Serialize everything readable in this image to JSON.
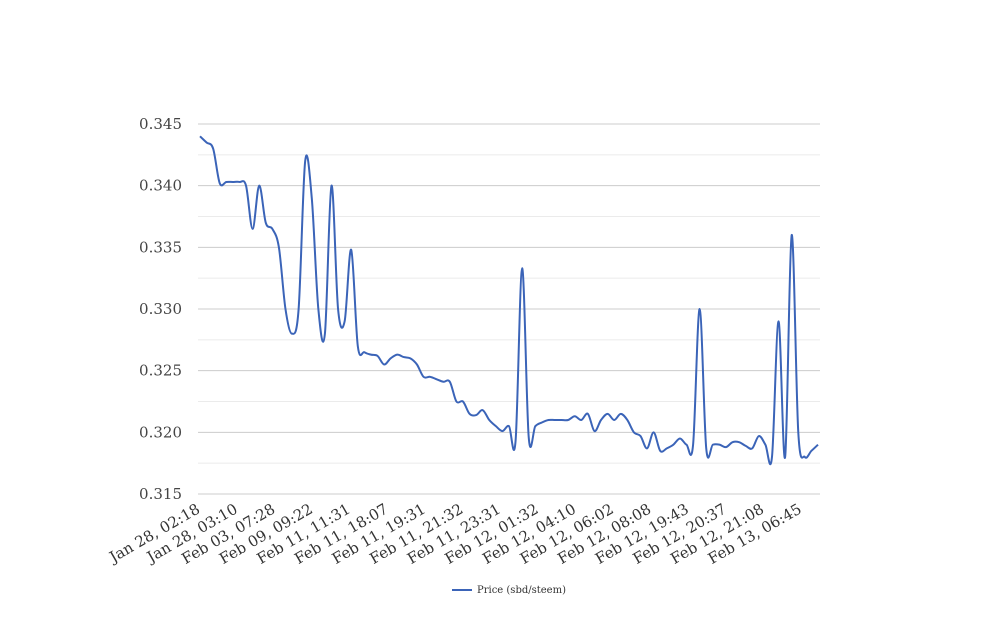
{
  "chart_data": {
    "type": "line",
    "title": "",
    "xlabel": "",
    "ylabel": "",
    "ylim": [
      0.315,
      0.345
    ],
    "yticks": [
      "0.315",
      "0.320",
      "0.325",
      "0.330",
      "0.335",
      "0.340",
      "0.345"
    ],
    "grid": true,
    "legend_position": "bottom-center",
    "x_tick_labels": [
      "Jan 28, 02:18",
      "Jan 28, 03:10",
      "Feb 03, 07:28",
      "Feb 09, 09:22",
      "Feb 11, 11:31",
      "Feb 11, 18:07",
      "Feb 11, 19:31",
      "Feb 11, 21:32",
      "Feb 11, 23:31",
      "Feb 12, 01:32",
      "Feb 12, 04:10",
      "Feb 12, 06:02",
      "Feb 12, 08:08",
      "Feb 12, 19:43",
      "Feb 12, 20:37",
      "Feb 12, 21:08",
      "Feb 13, 06:45"
    ],
    "series": [
      {
        "name": "Price (sbd/steem)",
        "color": "#3b64b8",
        "values": [
          0.344,
          0.3435,
          0.343,
          0.3402,
          0.3403,
          0.3403,
          0.3403,
          0.34,
          0.3365,
          0.34,
          0.337,
          0.3365,
          0.335,
          0.33,
          0.328,
          0.33,
          0.342,
          0.339,
          0.33,
          0.328,
          0.34,
          0.33,
          0.329,
          0.3348,
          0.327,
          0.3265,
          0.3263,
          0.3262,
          0.3255,
          0.326,
          0.3263,
          0.3261,
          0.326,
          0.3255,
          0.3245,
          0.3245,
          0.3243,
          0.3241,
          0.3241,
          0.3225,
          0.3225,
          0.3215,
          0.3214,
          0.3218,
          0.321,
          0.3205,
          0.3201,
          0.3205,
          0.3193,
          0.3333,
          0.3196,
          0.3205,
          0.3208,
          0.321,
          0.321,
          0.321,
          0.321,
          0.3213,
          0.321,
          0.3215,
          0.3201,
          0.321,
          0.3215,
          0.321,
          0.3215,
          0.321,
          0.32,
          0.3197,
          0.3187,
          0.32,
          0.3185,
          0.3187,
          0.319,
          0.3195,
          0.319,
          0.319,
          0.33,
          0.3187,
          0.319,
          0.319,
          0.3188,
          0.3192,
          0.3192,
          0.3189,
          0.3187,
          0.3197,
          0.319,
          0.318,
          0.329,
          0.318,
          0.336,
          0.32,
          0.318,
          0.3185,
          0.319
        ]
      }
    ]
  }
}
